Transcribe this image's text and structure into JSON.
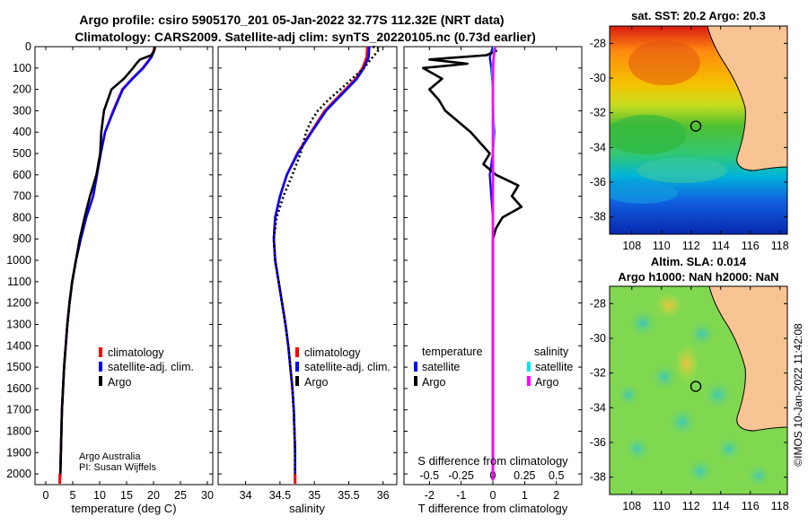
{
  "title": {
    "line1": "Argo profile: csiro 5905170_201 05-Jan-2022 32.77S 112.32E (NRT data)",
    "line2": "Climatology: CARS2009. Satellite-adj clim: synTS_20220105.nc (0.73d earlier)"
  },
  "credit": {
    "org": "Argo Australia",
    "pi": "PI: Susan Wijffels"
  },
  "map_sst": {
    "title": "sat. SST: 20.2 Argo: 20.3"
  },
  "map_sla": {
    "title_line1": "Altim. SLA: 0.014",
    "title_line2": "Argo h1000: NaN h2000: NaN"
  },
  "stamp": "©IMOS 10-Jan-2022 11:42:08",
  "legend_temp": {
    "items": [
      "climatology",
      "satellite-adj. clim.",
      "Argo"
    ]
  },
  "legend_sal": {
    "items": [
      "climatology",
      "satellite-adj. clim.",
      "Argo"
    ]
  },
  "legend_diff": {
    "temp_header": "temperature",
    "sal_header": "salinity",
    "temp_items": [
      "satellite",
      "Argo"
    ],
    "sal_items": [
      "satellite",
      "Argo"
    ]
  },
  "colors": {
    "climatology": "#ff0000",
    "satellite": "#0000ff",
    "argo": "#000000",
    "sal_satellite": "#00e5ee",
    "sal_argo": "#ff00ff",
    "land": "#f9c494"
  },
  "chart_data": [
    {
      "type": "line",
      "title": "",
      "xlabel": "temperature (deg C)",
      "ylabel": "",
      "xlim": [
        -2,
        31
      ],
      "ylim": [
        2050,
        0
      ],
      "xticks": [
        0,
        5,
        10,
        15,
        20,
        25,
        30
      ],
      "yticks": [
        0,
        100,
        200,
        300,
        400,
        500,
        600,
        700,
        800,
        900,
        1000,
        1100,
        1200,
        1300,
        1400,
        1500,
        1600,
        1700,
        1800,
        1900,
        2000
      ],
      "series": [
        {
          "name": "climatology",
          "points": [
            [
              20.2,
              0
            ],
            [
              20,
              20
            ],
            [
              19.5,
              50
            ],
            [
              18,
              100
            ],
            [
              16,
              150
            ],
            [
              14.2,
              200
            ],
            [
              12.5,
              300
            ],
            [
              11,
              400
            ],
            [
              10.2,
              500
            ],
            [
              9.5,
              600
            ],
            [
              8.8,
              700
            ],
            [
              7.5,
              800
            ],
            [
              6.5,
              900
            ],
            [
              5.6,
              1000
            ],
            [
              4.9,
              1100
            ],
            [
              4.4,
              1200
            ],
            [
              4,
              1300
            ],
            [
              3.7,
              1400
            ],
            [
              3.4,
              1500
            ],
            [
              3.2,
              1600
            ],
            [
              3,
              1700
            ],
            [
              2.9,
              1800
            ],
            [
              2.8,
              1900
            ],
            [
              2.7,
              2000
            ],
            [
              2.6,
              2030
            ]
          ]
        },
        {
          "name": "satellite-adj. clim.",
          "points": [
            [
              20.3,
              0
            ],
            [
              20.1,
              20
            ],
            [
              19.6,
              50
            ],
            [
              18.1,
              100
            ],
            [
              16.1,
              150
            ],
            [
              14.3,
              200
            ],
            [
              12.6,
              300
            ],
            [
              11,
              400
            ],
            [
              10.2,
              500
            ],
            [
              9.5,
              600
            ],
            [
              8.8,
              700
            ],
            [
              7.5,
              800
            ],
            [
              6.5,
              900
            ],
            [
              5.6,
              1000
            ],
            [
              4.9,
              1100
            ],
            [
              4.4,
              1200
            ],
            [
              4,
              1300
            ],
            [
              3.7,
              1400
            ],
            [
              3.4,
              1500
            ],
            [
              3.2,
              1600
            ],
            [
              3,
              1700
            ],
            [
              2.9,
              1800
            ],
            [
              2.8,
              1900
            ],
            [
              2.7,
              2000
            ],
            [
              2.6,
              2030
            ]
          ]
        },
        {
          "name": "Argo",
          "points": [
            [
              20.3,
              0
            ],
            [
              20.1,
              20
            ],
            [
              19.6,
              40
            ],
            [
              17.5,
              60
            ],
            [
              16.8,
              80
            ],
            [
              16.2,
              100
            ],
            [
              14.5,
              150
            ],
            [
              12.2,
              200
            ],
            [
              10.8,
              300
            ],
            [
              10.3,
              400
            ],
            [
              10.1,
              500
            ],
            [
              9.4,
              600
            ],
            [
              8.2,
              700
            ],
            [
              7.2,
              800
            ],
            [
              6.3,
              900
            ],
            [
              5.6,
              1000
            ],
            [
              4.9,
              1100
            ],
            [
              4.4,
              1200
            ],
            [
              4,
              1300
            ],
            [
              3.7,
              1400
            ],
            [
              3.4,
              1500
            ],
            [
              3.2,
              1600
            ],
            [
              3,
              1700
            ],
            [
              2.9,
              1800
            ],
            [
              2.8,
              1900
            ],
            [
              2.7,
              2000
            ],
            [
              2.6,
              2030
            ]
          ]
        }
      ]
    },
    {
      "type": "line",
      "title": "",
      "xlabel": "salinity",
      "ylabel": "",
      "xlim": [
        33.6,
        36.2
      ],
      "ylim": [
        2050,
        0
      ],
      "xticks": [
        34,
        34.5,
        35,
        35.5,
        36
      ],
      "series": [
        {
          "name": "climatology",
          "points": [
            [
              35.77,
              0
            ],
            [
              35.76,
              50
            ],
            [
              35.7,
              100
            ],
            [
              35.6,
              150
            ],
            [
              35.45,
              200
            ],
            [
              35.3,
              250
            ],
            [
              35.15,
              300
            ],
            [
              34.95,
              400
            ],
            [
              34.75,
              500
            ],
            [
              34.6,
              600
            ],
            [
              34.5,
              700
            ],
            [
              34.43,
              800
            ],
            [
              34.41,
              900
            ],
            [
              34.43,
              1000
            ],
            [
              34.48,
              1100
            ],
            [
              34.53,
              1200
            ],
            [
              34.58,
              1300
            ],
            [
              34.62,
              1400
            ],
            [
              34.65,
              1500
            ],
            [
              34.68,
              1600
            ],
            [
              34.7,
              1700
            ],
            [
              34.71,
              1800
            ],
            [
              34.72,
              1900
            ],
            [
              34.72,
              2000
            ],
            [
              34.72,
              2030
            ]
          ]
        },
        {
          "name": "satellite-adj. clim.",
          "points": [
            [
              35.8,
              0
            ],
            [
              35.79,
              50
            ],
            [
              35.72,
              100
            ],
            [
              35.62,
              150
            ],
            [
              35.47,
              200
            ],
            [
              35.32,
              250
            ],
            [
              35.17,
              300
            ],
            [
              34.96,
              400
            ],
            [
              34.76,
              500
            ],
            [
              34.6,
              600
            ],
            [
              34.5,
              700
            ],
            [
              34.43,
              800
            ],
            [
              34.41,
              900
            ],
            [
              34.43,
              1000
            ],
            [
              34.48,
              1100
            ],
            [
              34.53,
              1200
            ],
            [
              34.58,
              1300
            ],
            [
              34.62,
              1400
            ],
            [
              34.65,
              1500
            ],
            [
              34.68,
              1600
            ],
            [
              34.7,
              1700
            ],
            [
              34.71,
              1800
            ],
            [
              34.72,
              1900
            ],
            [
              34.72,
              2000
            ],
            [
              34.72,
              2030
            ]
          ]
        },
        {
          "name": "Argo",
          "points": [
            [
              35.85,
              0
            ],
            [
              35.95,
              10
            ],
            [
              35.9,
              30
            ],
            [
              35.82,
              60
            ],
            [
              35.72,
              100
            ],
            [
              35.55,
              150
            ],
            [
              35.38,
              200
            ],
            [
              35.2,
              250
            ],
            [
              35.05,
              300
            ],
            [
              34.95,
              350
            ],
            [
              34.88,
              400
            ],
            [
              34.8,
              500
            ],
            [
              34.68,
              600
            ],
            [
              34.55,
              700
            ],
            [
              34.45,
              800
            ],
            [
              34.41,
              900
            ],
            [
              34.43,
              1000
            ],
            [
              34.48,
              1100
            ],
            [
              34.53,
              1200
            ],
            [
              34.58,
              1300
            ],
            [
              34.62,
              1400
            ],
            [
              34.65,
              1500
            ],
            [
              34.68,
              1600
            ],
            [
              34.7,
              1700
            ],
            [
              34.71,
              1800
            ],
            [
              34.72,
              1900
            ],
            [
              34.72,
              2000
            ],
            [
              34.72,
              2030
            ]
          ]
        }
      ]
    },
    {
      "type": "line",
      "title": "",
      "xlabel": "T difference from climatology",
      "ylabel": "",
      "x2label": "S difference from climatology",
      "xlim": [
        -2.8,
        2.8
      ],
      "ylim": [
        2050,
        0
      ],
      "xticks": [
        -2,
        -1,
        0,
        1,
        2
      ],
      "x2ticks": [
        "-0.5",
        "-0.25",
        "0",
        "0.25",
        "0.5"
      ],
      "series": [
        {
          "name": "temperature satellite",
          "points": [
            [
              0,
              0
            ],
            [
              -0.1,
              50
            ],
            [
              -0.05,
              100
            ],
            [
              0,
              200
            ],
            [
              0,
              300
            ],
            [
              0.05,
              400
            ],
            [
              0,
              500
            ],
            [
              -0.1,
              600
            ],
            [
              -0.05,
              700
            ],
            [
              0,
              800
            ],
            [
              0,
              900
            ],
            [
              0,
              1000
            ],
            [
              0,
              1100
            ],
            [
              0,
              1200
            ],
            [
              0,
              1300
            ],
            [
              0,
              1500
            ],
            [
              0,
              1700
            ],
            [
              0,
              2030
            ]
          ]
        },
        {
          "name": "temperature Argo",
          "points": [
            [
              0,
              0
            ],
            [
              0.1,
              20
            ],
            [
              -0.2,
              40
            ],
            [
              -2.0,
              60
            ],
            [
              -0.8,
              80
            ],
            [
              -2.2,
              100
            ],
            [
              -1.6,
              150
            ],
            [
              -2.0,
              200
            ],
            [
              -1.7,
              250
            ],
            [
              -1.5,
              300
            ],
            [
              -0.7,
              400
            ],
            [
              -0.1,
              500
            ],
            [
              -0.3,
              550
            ],
            [
              0.1,
              600
            ],
            [
              0.8,
              650
            ],
            [
              0.6,
              700
            ],
            [
              0.9,
              750
            ],
            [
              0.3,
              800
            ],
            [
              0.1,
              850
            ],
            [
              0,
              900
            ],
            [
              0,
              1000
            ],
            [
              0,
              1100
            ],
            [
              0,
              1200
            ],
            [
              0,
              1300
            ],
            [
              0,
              1500
            ],
            [
              0,
              1700
            ],
            [
              0,
              2030
            ]
          ]
        },
        {
          "name": "salinity satellite",
          "points": [
            [
              0.03,
              0
            ],
            [
              0.02,
              50
            ],
            [
              -0.02,
              100
            ],
            [
              -0.01,
              200
            ],
            [
              0.02,
              300
            ],
            [
              0.03,
              400
            ],
            [
              0.01,
              500
            ],
            [
              0.02,
              600
            ],
            [
              0,
              700
            ],
            [
              0.01,
              800
            ],
            [
              0,
              900
            ],
            [
              0,
              1100
            ],
            [
              0,
              1300
            ],
            [
              0,
              1500
            ],
            [
              0,
              1700
            ],
            [
              0,
              2030
            ]
          ]
        },
        {
          "name": "salinity Argo",
          "points": [
            [
              0.08,
              0
            ],
            [
              0.05,
              20
            ],
            [
              0.02,
              60
            ],
            [
              0.01,
              100
            ],
            [
              0,
              200
            ],
            [
              0,
              2030
            ]
          ]
        }
      ]
    },
    {
      "type": "heatmap",
      "title": "sat. SST: 20.2 Argo: 20.3",
      "xticks": [
        108,
        110,
        112,
        114,
        116,
        118
      ],
      "yticks": [
        -28,
        -30,
        -32,
        -34,
        -36,
        -38
      ],
      "xlim": [
        106.5,
        118.5
      ],
      "ylim": [
        -39,
        -27
      ],
      "marker": [
        112.32,
        -32.77
      ]
    },
    {
      "type": "heatmap",
      "title": "Altim. SLA: 0.014",
      "xticks": [
        108,
        110,
        112,
        114,
        116,
        118
      ],
      "yticks": [
        -28,
        -30,
        -32,
        -34,
        -36,
        -38
      ],
      "xlim": [
        106.5,
        118.5
      ],
      "ylim": [
        -39,
        -27
      ],
      "marker": [
        112.32,
        -32.77
      ]
    }
  ]
}
